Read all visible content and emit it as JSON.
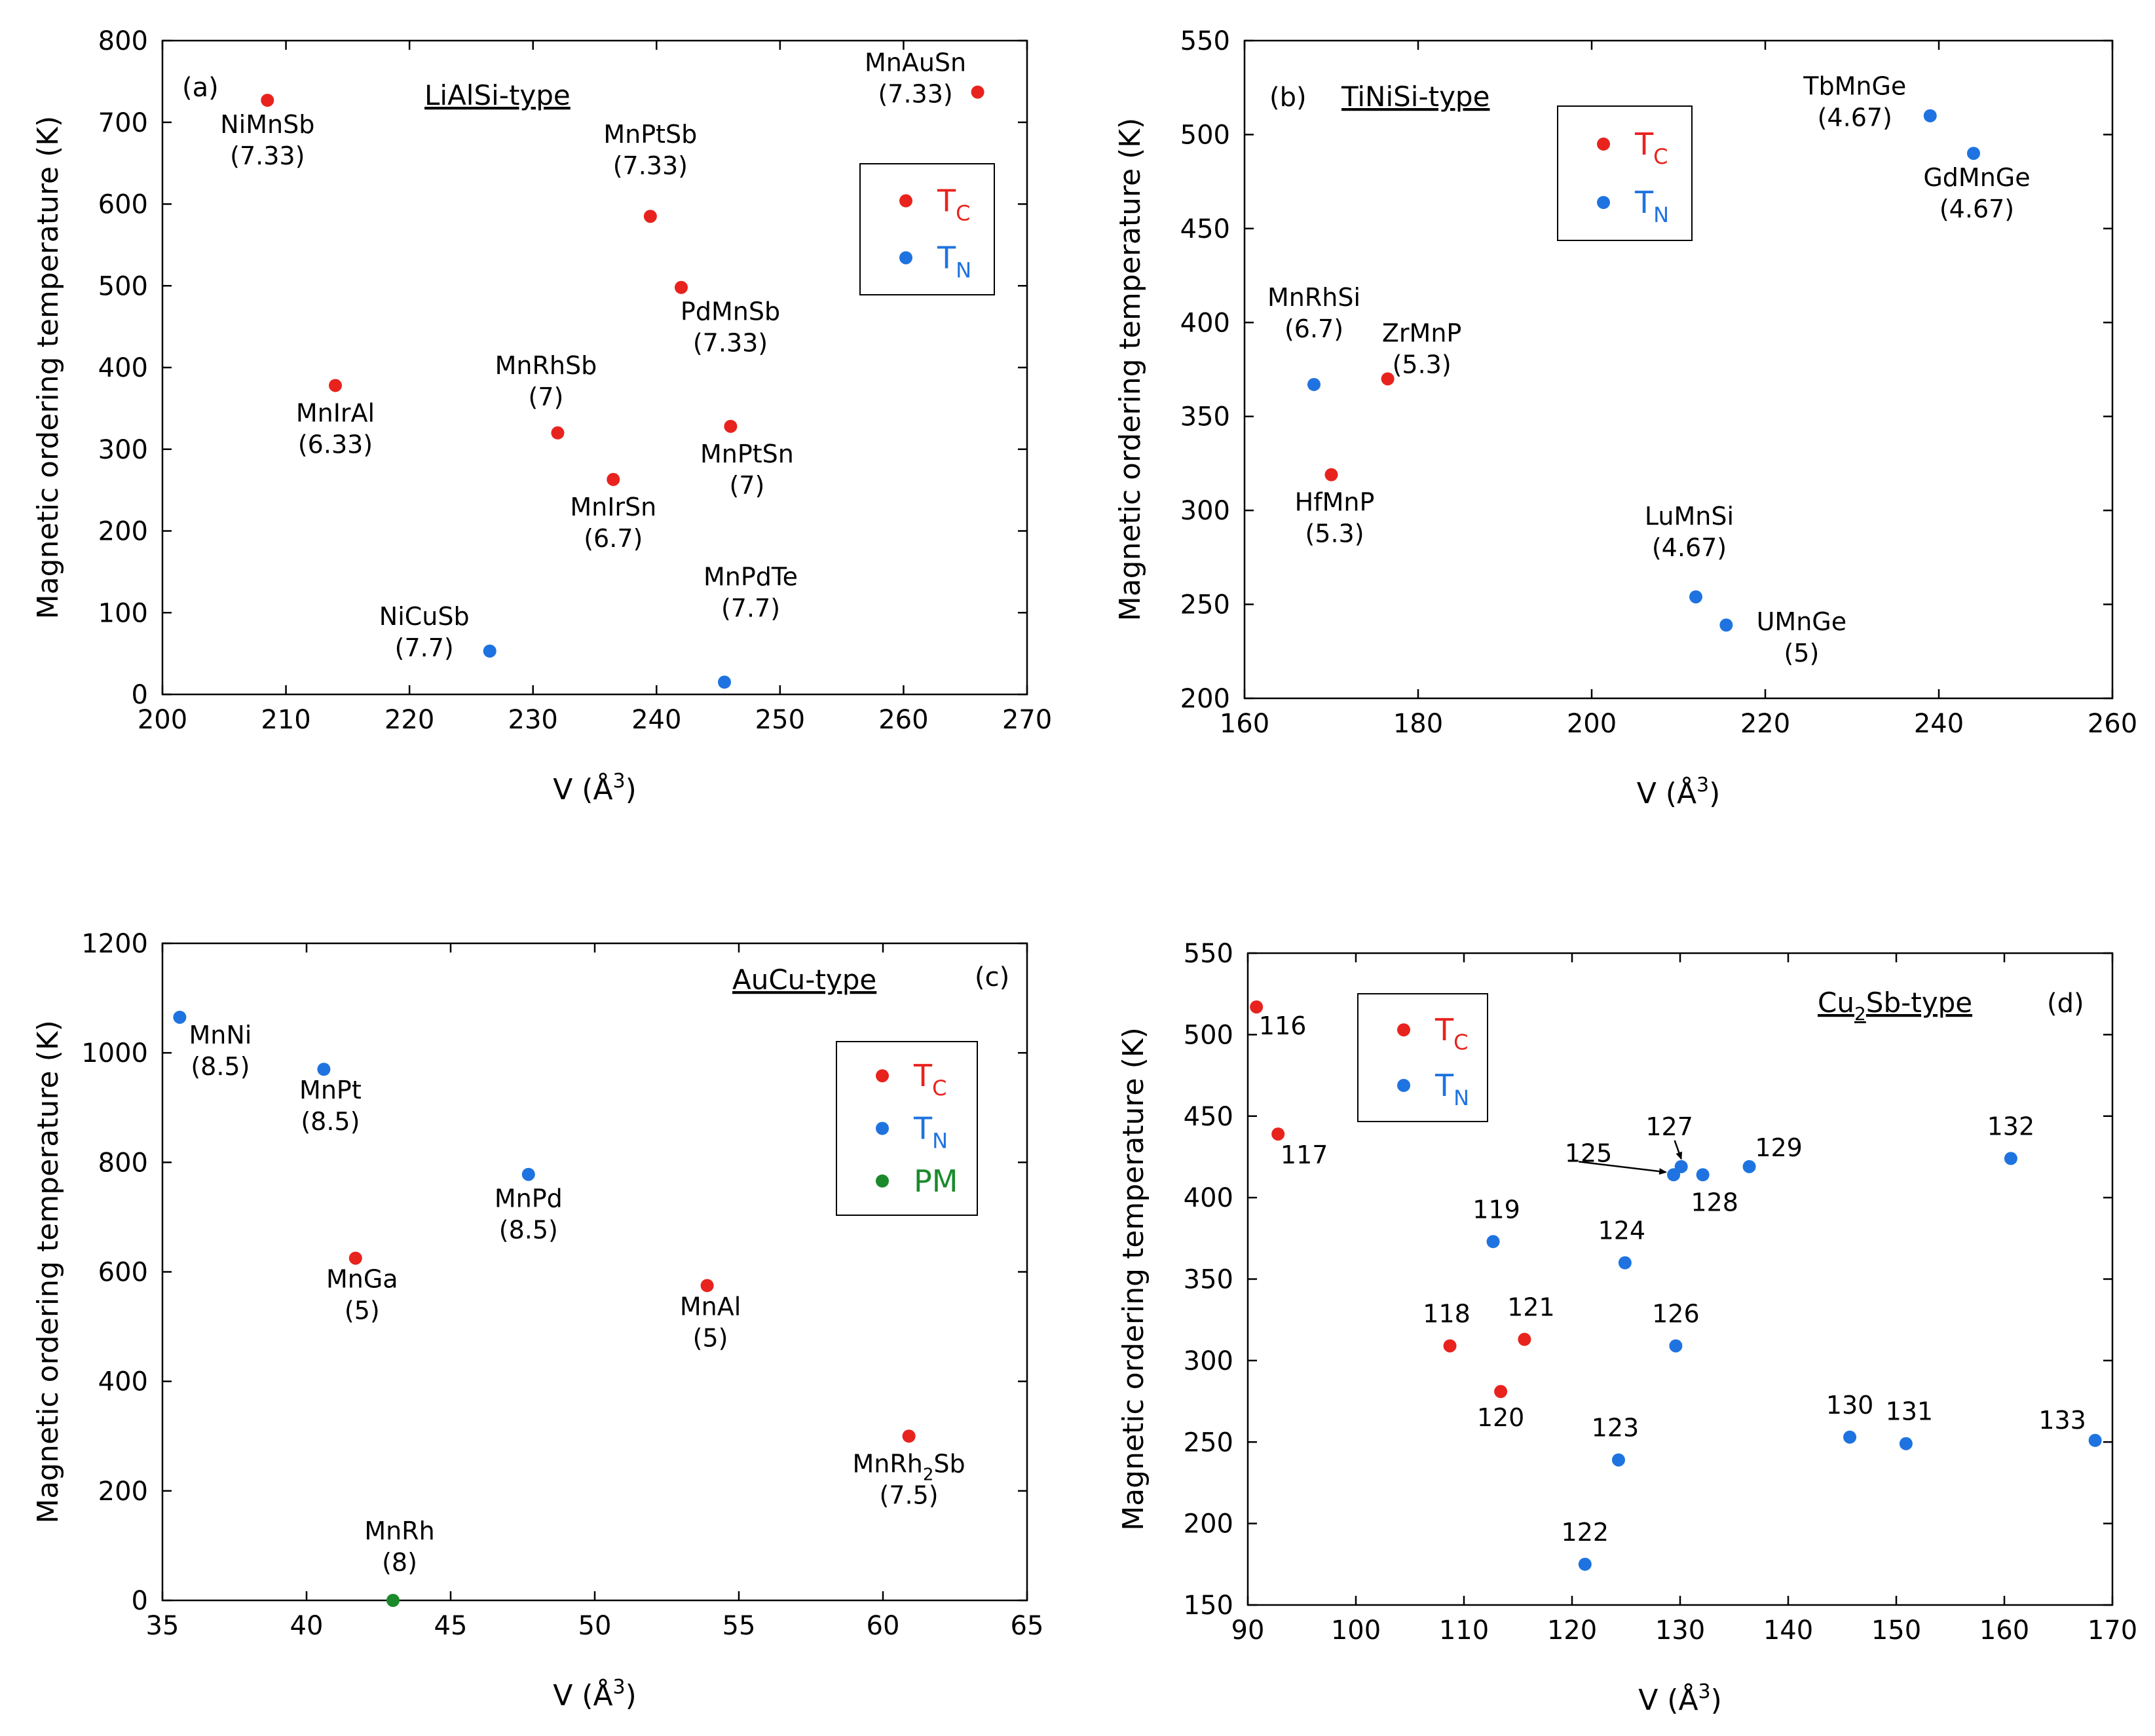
{
  "colors": {
    "tc": "#e8231e",
    "tn": "#1f73e0",
    "pm": "#1a8a2a"
  },
  "legend": {
    "tc_main": "T",
    "tc_sub": "C",
    "tn_main": "T",
    "tn_sub": "N",
    "pm": "PM"
  },
  "chart_data": [
    {
      "id": "a",
      "type": "scatter",
      "panel_label": "(a)",
      "title": "LiAlSi-type",
      "xlabel": "V (Å³)",
      "ylabel": "Magnetic ordering temperature (K)",
      "xlim": [
        200,
        270
      ],
      "ylim": [
        0,
        800
      ],
      "xticks": [
        200,
        210,
        220,
        230,
        240,
        250,
        260,
        270
      ],
      "yticks": [
        0,
        100,
        200,
        300,
        400,
        500,
        600,
        700,
        800
      ],
      "legend_items": [
        "tc",
        "tn"
      ],
      "points": [
        {
          "name": "NiMnSb",
          "value_label": "(7.33)",
          "x": 208.5,
          "y": 727,
          "type": "tc"
        },
        {
          "name": "MnIrAl",
          "value_label": "(6.33)",
          "x": 214,
          "y": 378,
          "type": "tc"
        },
        {
          "name": "MnRhSb",
          "value_label": "(7)",
          "x": 232,
          "y": 320,
          "type": "tc"
        },
        {
          "name": "MnIrSn",
          "value_label": "(6.7)",
          "x": 236.5,
          "y": 263,
          "type": "tc"
        },
        {
          "name": "MnPtSb",
          "value_label": "(7.33)",
          "x": 239.5,
          "y": 585,
          "type": "tc"
        },
        {
          "name": "PdMnSb",
          "value_label": "(7.33)",
          "x": 242,
          "y": 498,
          "type": "tc"
        },
        {
          "name": "MnPtSn",
          "value_label": "(7)",
          "x": 246,
          "y": 328,
          "type": "tc"
        },
        {
          "name": "MnAuSn",
          "value_label": "(7.33)",
          "x": 266,
          "y": 737,
          "type": "tc"
        },
        {
          "name": "NiCuSb",
          "value_label": "(7.7)",
          "x": 226.5,
          "y": 53,
          "type": "tn"
        },
        {
          "name": "MnPdTe",
          "value_label": "(7.7)",
          "x": 245.5,
          "y": 15,
          "type": "tn"
        }
      ]
    },
    {
      "id": "b",
      "type": "scatter",
      "panel_label": "(b)",
      "title": "TiNiSi-type",
      "xlabel": "V (Å³)",
      "ylabel": "Magnetic ordering temperature (K)",
      "xlim": [
        160,
        260
      ],
      "ylim": [
        200,
        550
      ],
      "xticks": [
        160,
        180,
        200,
        220,
        240,
        260
      ],
      "yticks": [
        200,
        250,
        300,
        350,
        400,
        450,
        500,
        550
      ],
      "legend_items": [
        "tc",
        "tn"
      ],
      "points": [
        {
          "name": "MnRhSi",
          "value_label": "(6.7)",
          "x": 168,
          "y": 367,
          "type": "tn"
        },
        {
          "name": "ZrMnP",
          "value_label": "(5.3)",
          "x": 176.5,
          "y": 370,
          "type": "tc"
        },
        {
          "name": "HfMnP",
          "value_label": "(5.3)",
          "x": 170,
          "y": 319,
          "type": "tc"
        },
        {
          "name": "LuMnSi",
          "value_label": "(4.67)",
          "x": 212,
          "y": 254,
          "type": "tn"
        },
        {
          "name": "UMnGe",
          "value_label": "(5)",
          "x": 215.5,
          "y": 239,
          "type": "tn"
        },
        {
          "name": "TbMnGe",
          "value_label": "(4.67)",
          "x": 239,
          "y": 510,
          "type": "tn"
        },
        {
          "name": "GdMnGe",
          "value_label": "(4.67)",
          "x": 244,
          "y": 490,
          "type": "tn"
        }
      ]
    },
    {
      "id": "c",
      "type": "scatter",
      "panel_label": "(c)",
      "title": "AuCu-type",
      "xlabel": "V (Å³)",
      "ylabel": "Magnetic ordering temperature (K)",
      "xlim": [
        35,
        65
      ],
      "ylim": [
        0,
        1200
      ],
      "xticks": [
        35,
        40,
        45,
        50,
        55,
        60,
        65
      ],
      "yticks": [
        0,
        200,
        400,
        600,
        800,
        1000,
        1200
      ],
      "legend_items": [
        "tc",
        "tn",
        "pm"
      ],
      "points": [
        {
          "name": "MnNi",
          "value_label": "(8.5)",
          "x": 35.6,
          "y": 1065,
          "type": "tn"
        },
        {
          "name": "MnPt",
          "value_label": "(8.5)",
          "x": 40.6,
          "y": 970,
          "type": "tn"
        },
        {
          "name": "MnPd",
          "value_label": "(8.5)",
          "x": 47.7,
          "y": 778,
          "type": "tn"
        },
        {
          "name": "MnGa",
          "value_label": "(5)",
          "x": 41.7,
          "y": 625,
          "type": "tc"
        },
        {
          "name": "MnAl",
          "value_label": "(5)",
          "x": 53.9,
          "y": 575,
          "type": "tc"
        },
        {
          "name": "MnRh",
          "name_sub": "2",
          "name_suffix": "Sb",
          "value_label": "(7.5)",
          "x": 60.9,
          "y": 300,
          "type": "tc"
        },
        {
          "name": "MnRh",
          "value_label": "(8)",
          "x": 43,
          "y": 0,
          "type": "pm"
        }
      ]
    },
    {
      "id": "d",
      "type": "scatter",
      "panel_label": "(d)",
      "title": "Cu",
      "title_sub": "2",
      "title_suffix": "Sb-type",
      "xlabel": "V (Å³)",
      "ylabel": "Magnetic ordering temperature (K)",
      "xlim": [
        90,
        170
      ],
      "ylim": [
        150,
        550
      ],
      "xticks": [
        90,
        100,
        110,
        120,
        130,
        140,
        150,
        160,
        170
      ],
      "yticks": [
        150,
        200,
        250,
        300,
        350,
        400,
        450,
        500,
        550
      ],
      "legend_items": [
        "tc",
        "tn"
      ],
      "points": [
        {
          "name": "116",
          "x": 90.8,
          "y": 517,
          "type": "tc"
        },
        {
          "name": "117",
          "x": 92.8,
          "y": 439,
          "type": "tc"
        },
        {
          "name": "118",
          "x": 108.7,
          "y": 309,
          "type": "tc"
        },
        {
          "name": "119",
          "x": 112.7,
          "y": 373,
          "type": "tn"
        },
        {
          "name": "120",
          "x": 113.4,
          "y": 281,
          "type": "tc"
        },
        {
          "name": "121",
          "x": 115.6,
          "y": 313,
          "type": "tc"
        },
        {
          "name": "122",
          "x": 121.2,
          "y": 175,
          "type": "tn"
        },
        {
          "name": "123",
          "x": 124.3,
          "y": 239,
          "type": "tn"
        },
        {
          "name": "124",
          "x": 124.9,
          "y": 360,
          "type": "tn"
        },
        {
          "name": "125",
          "x": 129.4,
          "y": 414,
          "type": "tn"
        },
        {
          "name": "126",
          "x": 129.6,
          "y": 309,
          "type": "tn"
        },
        {
          "name": "127",
          "x": 130.1,
          "y": 419,
          "type": "tn"
        },
        {
          "name": "128",
          "x": 132.1,
          "y": 414,
          "type": "tn"
        },
        {
          "name": "129",
          "x": 136.4,
          "y": 419,
          "type": "tn"
        },
        {
          "name": "130",
          "x": 145.7,
          "y": 253,
          "type": "tn"
        },
        {
          "name": "131",
          "x": 150.9,
          "y": 249,
          "type": "tn"
        },
        {
          "name": "132",
          "x": 160.6,
          "y": 424,
          "type": "tn"
        },
        {
          "name": "133",
          "x": 168.4,
          "y": 251,
          "type": "tn"
        }
      ]
    }
  ]
}
